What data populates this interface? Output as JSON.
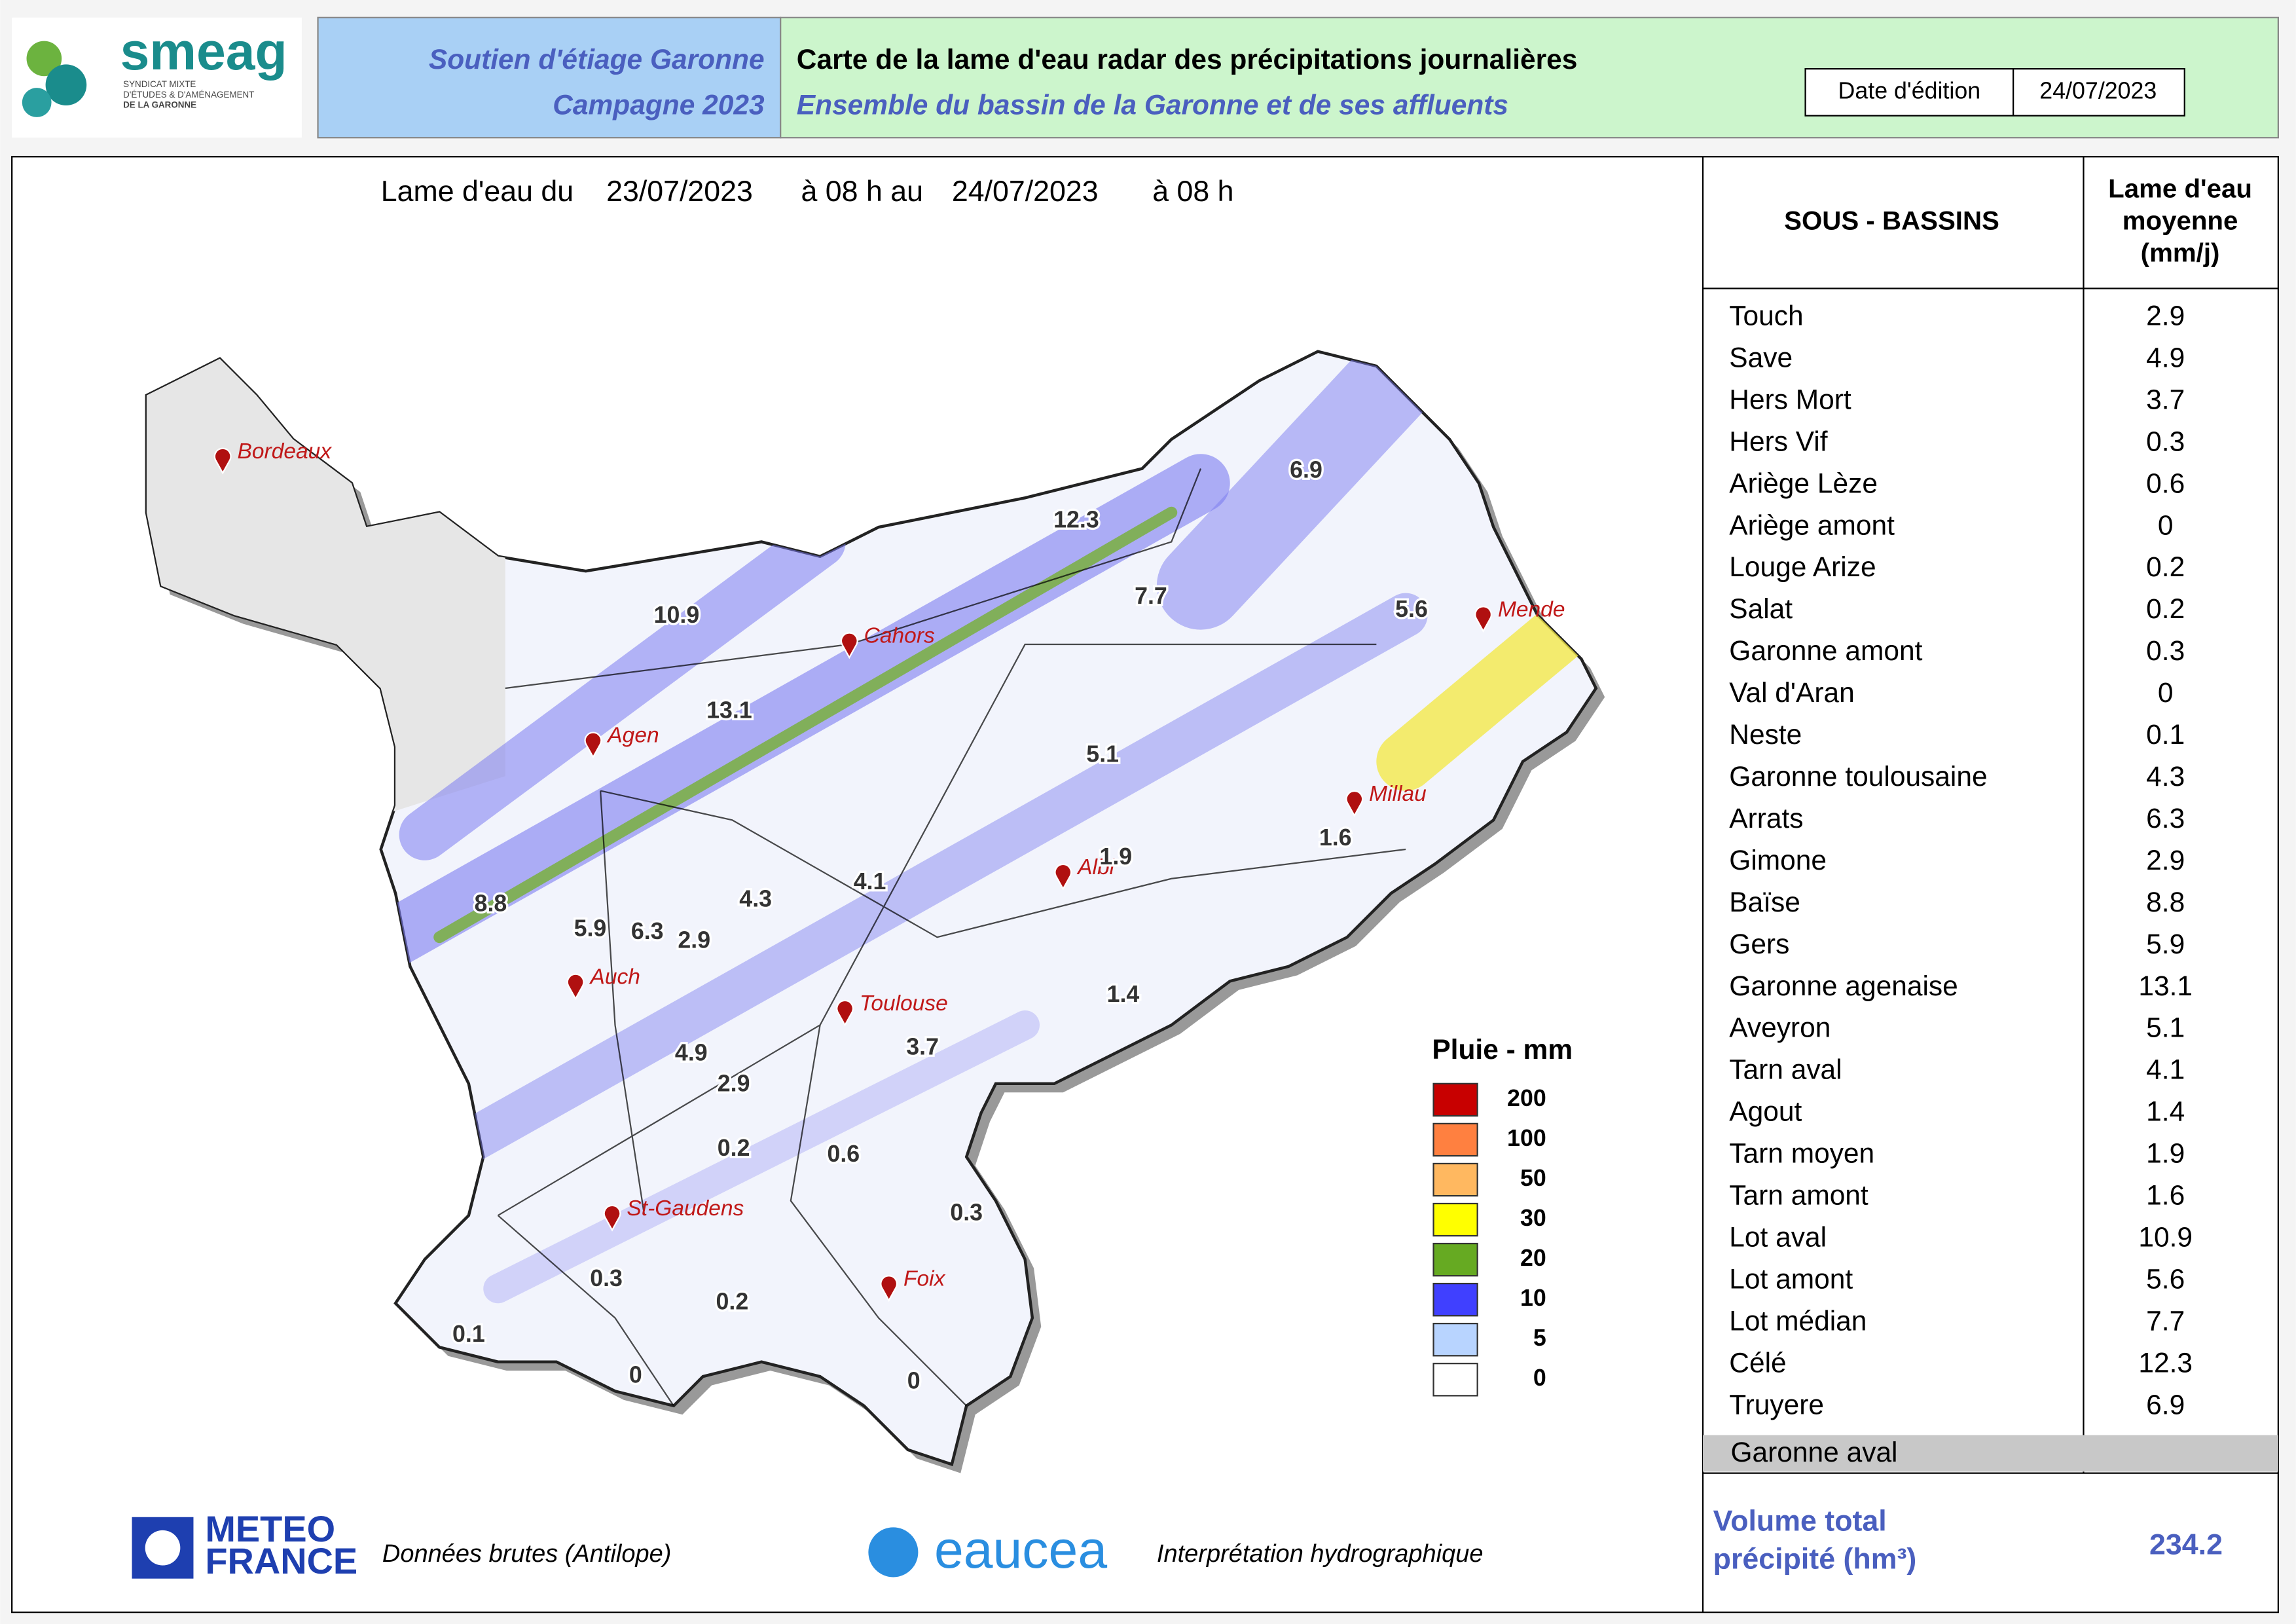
{
  "header": {
    "logo": {
      "name": "smeag",
      "line1": "SYNDICAT MIXTE",
      "line2": "D'ÉTUDES & D'AMÉNAGEMENT",
      "line3": "DE LA GARONNE"
    },
    "left_title": [
      "Soutien d'étiage Garonne",
      "Campagne 2023"
    ],
    "title": "Carte de la lame d'eau radar des précipitations journalières",
    "subtitle": "Ensemble du bassin de la Garonne et de ses affluents",
    "date_label": "Date d'édition",
    "date_value": "24/07/2023"
  },
  "map": {
    "period": [
      "Lame d'eau du",
      "23/07/2023",
      "à 08 h au",
      "24/07/2023",
      "à 08 h"
    ],
    "cities": [
      "Bordeaux",
      "Cahors",
      "Mende",
      "Agen",
      "Millau",
      "Albi",
      "Auch",
      "Toulouse",
      "St-Gaudens",
      "Foix"
    ],
    "basin_values": [
      6.9,
      12.3,
      7.7,
      10.9,
      5.6,
      13.1,
      5.1,
      1.6,
      1.9,
      4.1,
      4.3,
      8.8,
      5.9,
      6.3,
      2.9,
      1.4,
      3.7,
      4.9,
      2.9,
      0.2,
      0.6,
      0.3,
      0.3,
      0.2,
      0.1,
      0,
      0
    ],
    "legend": {
      "title": "Pluie - mm",
      "entries": [
        {
          "value": 200,
          "color": "#c80000"
        },
        {
          "value": 100,
          "color": "#ff8040"
        },
        {
          "value": 50,
          "color": "#ffb860"
        },
        {
          "value": 30,
          "color": "#ffff00"
        },
        {
          "value": 20,
          "color": "#66aa22"
        },
        {
          "value": 10,
          "color": "#4040ff"
        },
        {
          "value": 5,
          "color": "#b8d4ff"
        },
        {
          "value": 0,
          "color": "#ffffff"
        }
      ]
    }
  },
  "table": {
    "headers": [
      "SOUS - BASSINS",
      "Lame d'eau",
      "moyenne",
      "(mm/j)"
    ],
    "rows": [
      [
        "Touch",
        2.9
      ],
      [
        "Save",
        4.9
      ],
      [
        "Hers Mort",
        3.7
      ],
      [
        "Hers Vif",
        0.3
      ],
      [
        "Ariège Lèze",
        0.6
      ],
      [
        "Ariège amont",
        0
      ],
      [
        "Louge Arize",
        0.2
      ],
      [
        "Salat",
        0.2
      ],
      [
        "Garonne amont",
        0.3
      ],
      [
        "Val d'Aran",
        0
      ],
      [
        "Neste",
        0.1
      ],
      [
        "Garonne toulousaine",
        4.3
      ],
      [
        "Arrats",
        6.3
      ],
      [
        "Gimone",
        2.9
      ],
      [
        "Baïse",
        8.8
      ],
      [
        "Gers",
        5.9
      ],
      [
        "Garonne agenaise",
        13.1
      ],
      [
        "Aveyron",
        5.1
      ],
      [
        "Tarn aval",
        4.1
      ],
      [
        "Agout",
        1.4
      ],
      [
        "Tarn moyen",
        1.9
      ],
      [
        "Tarn amont",
        1.6
      ],
      [
        "Lot aval",
        10.9
      ],
      [
        "Lot amont",
        5.6
      ],
      [
        "Lot médian",
        7.7
      ],
      [
        "Célé",
        12.3
      ],
      [
        "Truyere",
        6.9
      ]
    ],
    "grey_row": "Garonne aval",
    "total_label": [
      "Volume total",
      "précipité (hm³)"
    ],
    "total_value": 234.2
  },
  "footer": {
    "meteo": [
      "METEO",
      "FRANCE"
    ],
    "meteo_note": "Données brutes (Antilope)",
    "eaucea": "eaucea",
    "eaucea_note": "Interprétation hydrographique"
  }
}
